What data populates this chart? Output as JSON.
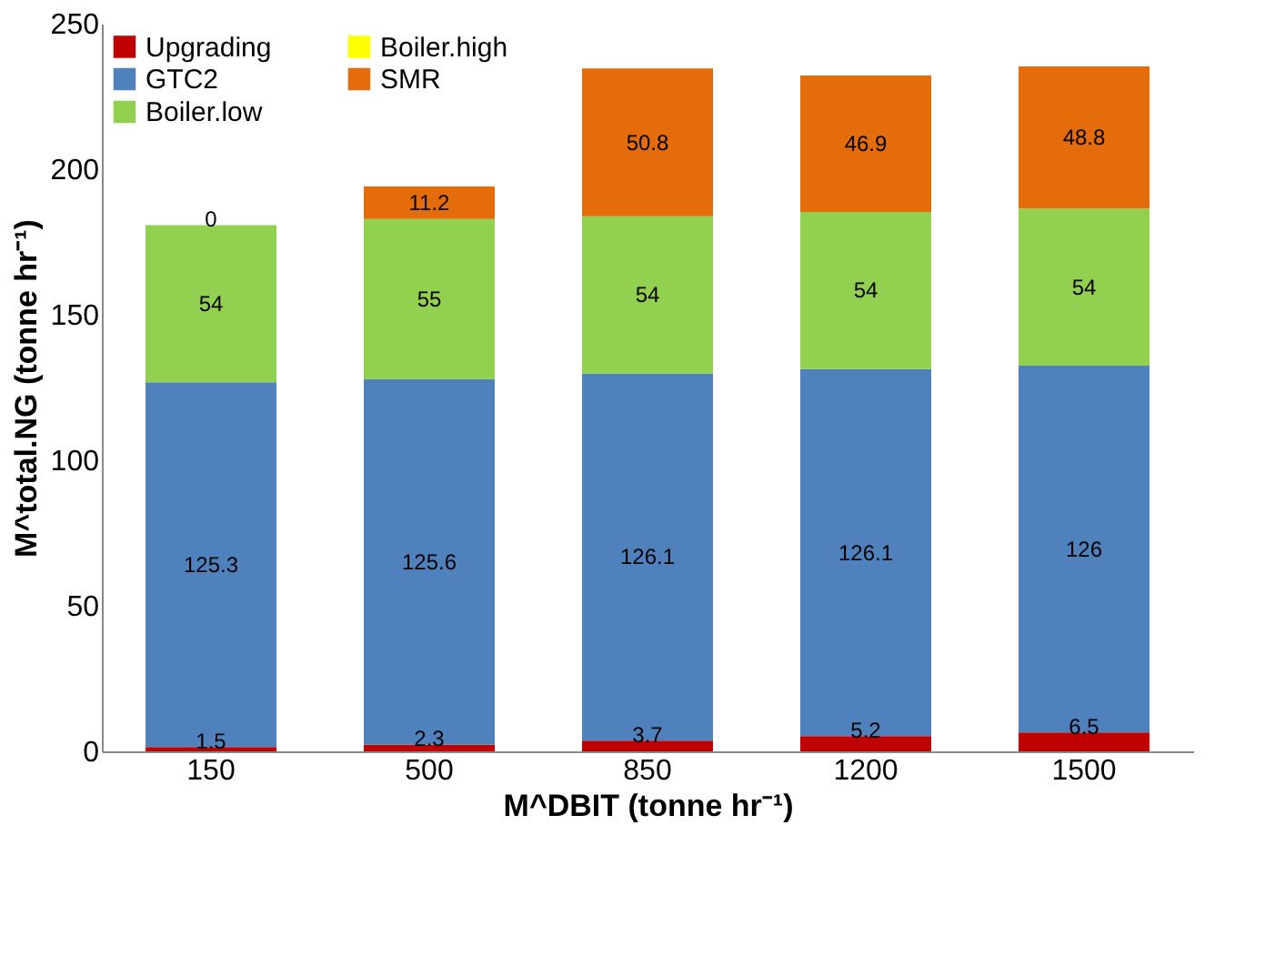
{
  "chart_data": {
    "type": "bar",
    "stacked": true,
    "xlabel": "M^DBIT (tonne hr⁻¹)",
    "ylabel": "M^total.NG (tonne hr⁻¹)",
    "categories": [
      "150",
      "500",
      "850",
      "1200",
      "1500"
    ],
    "series": [
      {
        "name": "Upgrading",
        "color": "#c00000",
        "values": [
          1.5,
          2.3,
          3.7,
          5.2,
          6.5
        ],
        "value_labels": [
          "1.5",
          "2.3",
          "3.7",
          "5.2",
          "6.5"
        ]
      },
      {
        "name": "GTC2",
        "color": "#4f81bd",
        "values": [
          125.3,
          125.6,
          126.1,
          126.1,
          126
        ],
        "value_labels": [
          "125.3",
          "125.6",
          "126.1",
          "126.1",
          "126"
        ]
      },
      {
        "name": "Boiler.low",
        "color": "#92d050",
        "values": [
          54,
          55,
          54,
          54,
          54
        ],
        "value_labels": [
          "54",
          "55",
          "54",
          "54",
          "54"
        ]
      },
      {
        "name": "Boiler.high",
        "color": "#ffff00",
        "values": [
          0,
          0,
          0,
          0,
          0
        ],
        "value_labels": [
          null,
          null,
          null,
          null,
          null
        ]
      },
      {
        "name": "SMR",
        "color": "#e46c0a",
        "values": [
          0,
          11.2,
          50.8,
          46.9,
          48.8
        ],
        "value_labels": [
          "0",
          "11.2",
          "50.8",
          "46.9",
          "48.8"
        ]
      }
    ],
    "ylim": [
      0,
      250
    ],
    "yticks": [
      0,
      50,
      100,
      150,
      200,
      250
    ],
    "grid": false,
    "legend": "top left"
  }
}
